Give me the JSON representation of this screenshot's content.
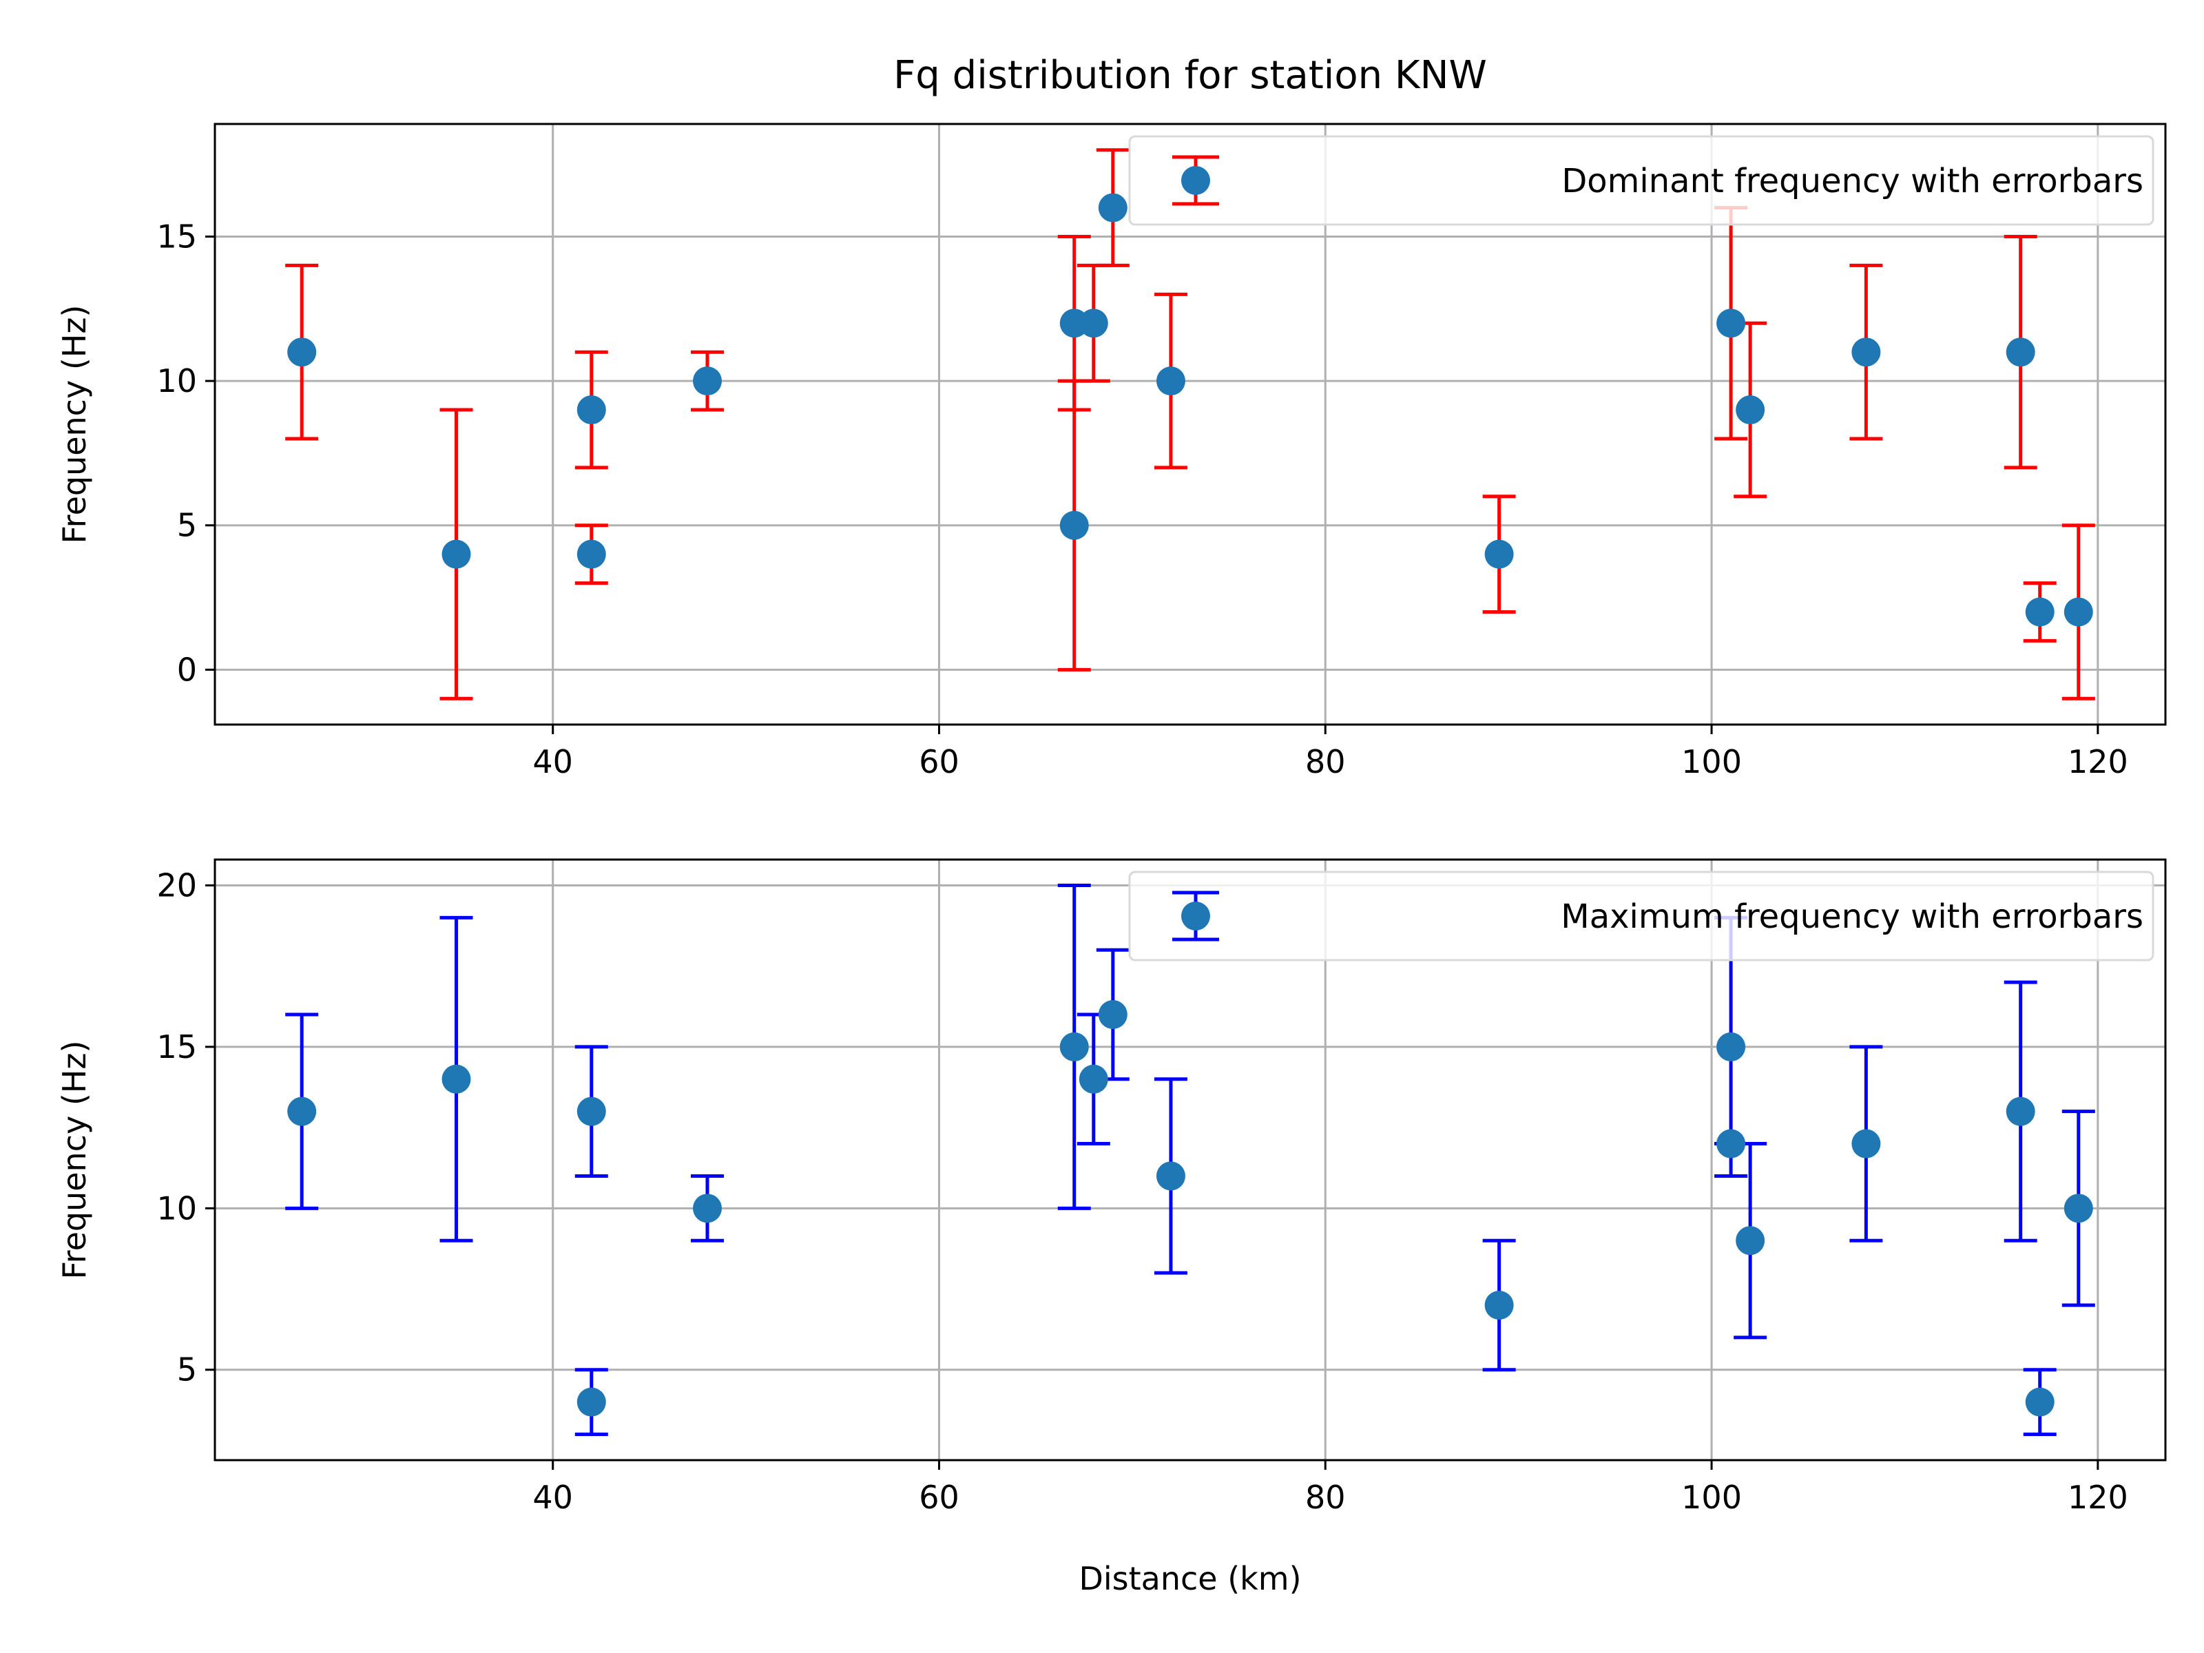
{
  "figure": {
    "title": "Fq distribution for station KNW"
  },
  "chart_data": [
    {
      "type": "scatter",
      "subplot": "top",
      "title": "Fq distribution for station KNW",
      "xlabel": "",
      "ylabel": "Frequency (Hz)",
      "xlim": [
        22.5,
        123.5
      ],
      "ylim": [
        -1.9,
        18.9
      ],
      "xticks": [
        40,
        60,
        80,
        100,
        120
      ],
      "yticks": [
        0,
        5,
        10,
        15
      ],
      "grid": true,
      "legend_position": "top-right",
      "marker_color": "#1f77b4",
      "errorbar_color": "#ff0000",
      "series": [
        {
          "name": "Dominant frequency with errorbars",
          "points": [
            {
              "x": 27,
              "y": 11,
              "low": 8,
              "high": 14
            },
            {
              "x": 35,
              "y": 4,
              "low": -1,
              "high": 9
            },
            {
              "x": 42,
              "y": 9,
              "low": 7,
              "high": 11
            },
            {
              "x": 42,
              "y": 4,
              "low": 3,
              "high": 5
            },
            {
              "x": 48,
              "y": 10,
              "low": 9,
              "high": 11
            },
            {
              "x": 67,
              "y": 12,
              "low": 9,
              "high": 15
            },
            {
              "x": 67,
              "y": 5,
              "low": 0,
              "high": 10
            },
            {
              "x": 68,
              "y": 12,
              "low": 10,
              "high": 14
            },
            {
              "x": 69,
              "y": 16,
              "low": 14,
              "high": 18
            },
            {
              "x": 72,
              "y": 10,
              "low": 7,
              "high": 13
            },
            {
              "x": 89,
              "y": 4,
              "low": 2,
              "high": 6
            },
            {
              "x": 101,
              "y": 12,
              "low": 8,
              "high": 16
            },
            {
              "x": 102,
              "y": 9,
              "low": 6,
              "high": 12
            },
            {
              "x": 108,
              "y": 11,
              "low": 8,
              "high": 14
            },
            {
              "x": 116,
              "y": 11,
              "low": 7,
              "high": 15
            },
            {
              "x": 117,
              "y": 2,
              "low": 1,
              "high": 3
            },
            {
              "x": 119,
              "y": 2,
              "low": -1,
              "high": 5
            }
          ]
        }
      ]
    },
    {
      "type": "scatter",
      "subplot": "bottom",
      "title": "",
      "xlabel": "Distance (km)",
      "ylabel": "Frequency (Hz)",
      "xlim": [
        22.5,
        123.5
      ],
      "ylim": [
        2.2,
        20.8
      ],
      "xticks": [
        40,
        60,
        80,
        100,
        120
      ],
      "yticks": [
        5,
        10,
        15,
        20
      ],
      "grid": true,
      "legend_position": "top-right",
      "marker_color": "#1f77b4",
      "errorbar_color": "#0000ff",
      "series": [
        {
          "name": "Maximum frequency with errorbars",
          "points": [
            {
              "x": 27,
              "y": 13,
              "low": 10,
              "high": 16
            },
            {
              "x": 35,
              "y": 14,
              "low": 9,
              "high": 19
            },
            {
              "x": 42,
              "y": 13,
              "low": 11,
              "high": 15
            },
            {
              "x": 42,
              "y": 4,
              "low": 3,
              "high": 5
            },
            {
              "x": 48,
              "y": 10,
              "low": 9,
              "high": 11
            },
            {
              "x": 67,
              "y": 15,
              "low": 10,
              "high": 20
            },
            {
              "x": 68,
              "y": 14,
              "low": 12,
              "high": 16
            },
            {
              "x": 69,
              "y": 16,
              "low": 14,
              "high": 18
            },
            {
              "x": 72,
              "y": 11,
              "low": 8,
              "high": 14
            },
            {
              "x": 89,
              "y": 7,
              "low": 5,
              "high": 9
            },
            {
              "x": 101,
              "y": 15,
              "low": 11,
              "high": 19
            },
            {
              "x": 101,
              "y": 12,
              "low": 12,
              "high": 12
            },
            {
              "x": 102,
              "y": 9,
              "low": 6,
              "high": 12
            },
            {
              "x": 108,
              "y": 12,
              "low": 9,
              "high": 15
            },
            {
              "x": 116,
              "y": 13,
              "low": 9,
              "high": 17
            },
            {
              "x": 117,
              "y": 4,
              "low": 3,
              "high": 5
            },
            {
              "x": 119,
              "y": 10,
              "low": 7,
              "high": 13
            }
          ]
        }
      ]
    }
  ]
}
